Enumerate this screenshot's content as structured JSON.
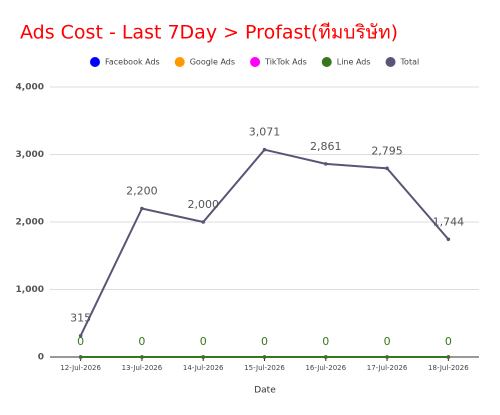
{
  "chart_data": {
    "type": "line",
    "title": "Ads Cost - Last 7Day > Profast(ทีมบริษัท)",
    "x_label": "Date",
    "categories": [
      "12-Jul-2026",
      "13-Jul-2026",
      "14-Jul-2026",
      "15-Jul-2026",
      "16-Jul-2026",
      "17-Jul-2026",
      "18-Jul-2026"
    ],
    "series": [
      {
        "name": "Facebook Ads",
        "color": "#0000ff",
        "values": [
          0,
          0,
          0,
          0,
          0,
          0,
          0
        ],
        "show_labels": false
      },
      {
        "name": "Google Ads",
        "color": "#ff9900",
        "values": [
          0,
          0,
          0,
          0,
          0,
          0,
          0
        ],
        "show_labels": false
      },
      {
        "name": "TikTok Ads",
        "color": "#ff00ff",
        "values": [
          0,
          0,
          0,
          0,
          0,
          0,
          0
        ],
        "show_labels": false
      },
      {
        "name": "Line Ads",
        "color": "#38761d",
        "values": [
          0,
          0,
          0,
          0,
          0,
          0,
          0
        ],
        "show_labels": true
      },
      {
        "name": "Total",
        "color": "#5a5577",
        "values": [
          315,
          2200,
          2000,
          3071,
          2861,
          2795,
          1744
        ],
        "value_labels": [
          "315",
          "2,200",
          "2,000",
          "3,071",
          "2,861",
          "2,795",
          "1,744"
        ],
        "show_labels": true
      }
    ],
    "ylim": [
      0,
      4000
    ],
    "yticks": [
      0,
      {
        "value": 1000,
        "label": "1,000"
      },
      {
        "value": 2000,
        "label": "2,000"
      },
      {
        "value": 3000,
        "label": "3,000"
      },
      {
        "value": 4000,
        "label": "4,000"
      }
    ],
    "grid": true,
    "legend": "top"
  }
}
